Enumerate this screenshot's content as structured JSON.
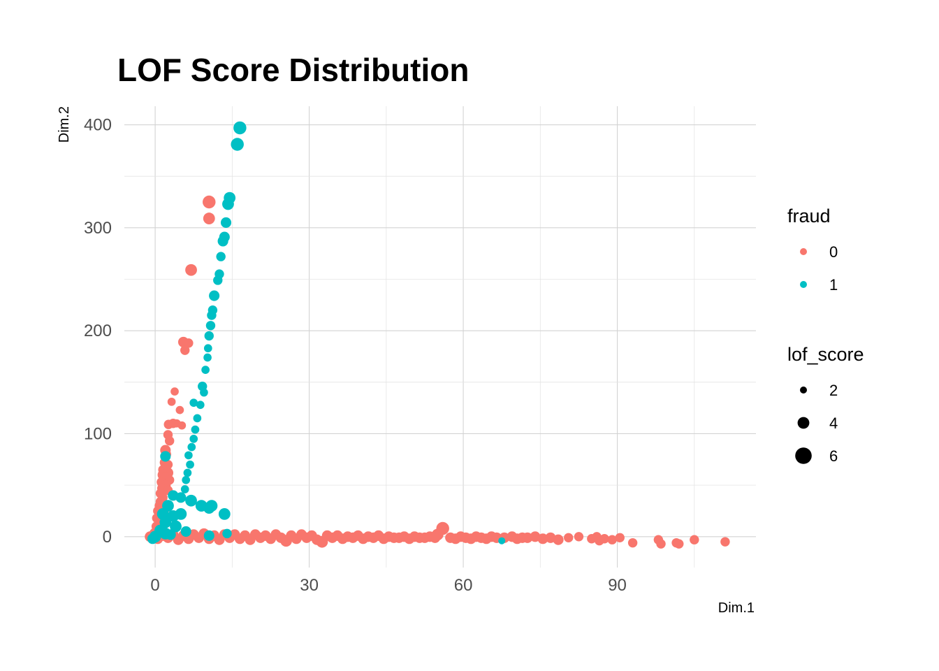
{
  "chart_data": {
    "type": "scatter",
    "title": "LOF Score Distribution",
    "xlabel": "Dim.1",
    "ylabel": "Dim.2",
    "xlim": [
      -6,
      117
    ],
    "ylim": [
      -30,
      418
    ],
    "x_ticks": [
      0,
      30,
      60,
      90
    ],
    "y_ticks": [
      0,
      100,
      200,
      300,
      400
    ],
    "x_tick_labels": [
      "0",
      "30",
      "60",
      "90"
    ],
    "y_tick_labels": [
      "0",
      "100",
      "200",
      "300",
      "400"
    ],
    "grid": true,
    "legend_position": "right",
    "color_legend": {
      "title": "fraud",
      "entries": [
        {
          "label": "0",
          "color": "#F8766D"
        },
        {
          "label": "1",
          "color": "#00BFC4"
        }
      ]
    },
    "size_legend": {
      "title": "lof_score",
      "entries": [
        {
          "label": "2",
          "value": 2
        },
        {
          "label": "4",
          "value": 4
        },
        {
          "label": "6",
          "value": 6
        }
      ]
    },
    "series": [
      {
        "name": "0",
        "color": "#F8766D",
        "points": [
          [
            10.5,
            325,
            4.5
          ],
          [
            10.5,
            309,
            4
          ],
          [
            7,
            259,
            4
          ],
          [
            5.5,
            189,
            3.5
          ],
          [
            6.5,
            188,
            3
          ],
          [
            5.8,
            181,
            3
          ],
          [
            3.8,
            141,
            2.5
          ],
          [
            3.2,
            131,
            2.5
          ],
          [
            4.8,
            123,
            2.5
          ],
          [
            3.5,
            110,
            3
          ],
          [
            4.2,
            110,
            2.5
          ],
          [
            2.6,
            109,
            3
          ],
          [
            2.5,
            99,
            3
          ],
          [
            5.2,
            108,
            2.5
          ],
          [
            2.8,
            93,
            3
          ],
          [
            2,
            84,
            3.5
          ],
          [
            2.2,
            80,
            3
          ],
          [
            1.8,
            72,
            3
          ],
          [
            2.5,
            70,
            3
          ],
          [
            1.5,
            65,
            3
          ],
          [
            2.5,
            62,
            3.5
          ],
          [
            1.5,
            60,
            3.5
          ],
          [
            2,
            57,
            3.5
          ],
          [
            2.8,
            55,
            3
          ],
          [
            1.2,
            53,
            3
          ],
          [
            2,
            50,
            3.5
          ],
          [
            1.3,
            47,
            3
          ],
          [
            2.5,
            45,
            3
          ],
          [
            1,
            42,
            3
          ],
          [
            1.5,
            38,
            3
          ],
          [
            1,
            34,
            3
          ],
          [
            0.8,
            30,
            3
          ],
          [
            2.2,
            28,
            3
          ],
          [
            0.5,
            25,
            3
          ],
          [
            1.5,
            22,
            3
          ],
          [
            0.3,
            18,
            3
          ],
          [
            0.8,
            14,
            3
          ],
          [
            0.2,
            10,
            3
          ],
          [
            0.6,
            6,
            3.5
          ],
          [
            0,
            3,
            4
          ],
          [
            -1,
            0,
            3.5
          ],
          [
            0.5,
            -2,
            3.5
          ],
          [
            1.5,
            1,
            3.5
          ],
          [
            2.5,
            -1,
            3.5
          ],
          [
            3.5,
            2,
            3.5
          ],
          [
            4.5,
            -3,
            3.5
          ],
          [
            5.5,
            1,
            3.5
          ],
          [
            6.5,
            -2,
            3.5
          ],
          [
            7.5,
            2,
            3.5
          ],
          [
            8.5,
            -1,
            3.5
          ],
          [
            9.5,
            3,
            3.5
          ],
          [
            10.5,
            -2,
            3.5
          ],
          [
            11.5,
            1,
            3.5
          ],
          [
            12.5,
            -3,
            3.5
          ],
          [
            13.5,
            2,
            3.5
          ],
          [
            14.5,
            -1,
            3.5
          ],
          [
            15.5,
            2,
            3.5
          ],
          [
            16.5,
            -2,
            3.5
          ],
          [
            17.5,
            1,
            3.5
          ],
          [
            18.5,
            -3,
            3.5
          ],
          [
            19.5,
            2,
            3.5
          ],
          [
            20.5,
            -1,
            3.5
          ],
          [
            21.5,
            1,
            3.5
          ],
          [
            22.5,
            -2,
            3.5
          ],
          [
            23.5,
            2,
            3.5
          ],
          [
            24.5,
            -1,
            3.5
          ],
          [
            25.5,
            -4,
            4
          ],
          [
            26.5,
            1,
            3.5
          ],
          [
            27.5,
            -2,
            3.5
          ],
          [
            28.5,
            2,
            3.5
          ],
          [
            29.5,
            -1,
            3.5
          ],
          [
            30.5,
            1,
            3.5
          ],
          [
            31.5,
            -3,
            3.5
          ],
          [
            32.5,
            -5,
            4
          ],
          [
            33.5,
            1,
            3.5
          ],
          [
            34.5,
            -1,
            3.5
          ],
          [
            35.5,
            1,
            3.5
          ],
          [
            36.5,
            -2,
            3.5
          ],
          [
            37.5,
            0,
            3.5
          ],
          [
            38.5,
            -1,
            3.5
          ],
          [
            39.5,
            1,
            3.5
          ],
          [
            40.5,
            -2,
            3.5
          ],
          [
            41.5,
            0,
            3.5
          ],
          [
            42.5,
            -1,
            3.5
          ],
          [
            43.5,
            1,
            3.5
          ],
          [
            44.5,
            -2,
            3.5
          ],
          [
            45.5,
            0,
            3.5
          ],
          [
            46.5,
            -1,
            3.5
          ],
          [
            47.5,
            -1,
            3.5
          ],
          [
            48.5,
            0,
            3.5
          ],
          [
            49.5,
            -2,
            3.5
          ],
          [
            50.5,
            0,
            3.5
          ],
          [
            51.5,
            -1,
            3.5
          ],
          [
            52.5,
            -1,
            3.5
          ],
          [
            53.5,
            0,
            3.5
          ],
          [
            54.5,
            -1,
            3.5
          ],
          [
            55,
            2,
            4
          ],
          [
            56,
            8,
            4.5
          ],
          [
            57.5,
            -1,
            3.5
          ],
          [
            58.5,
            -2,
            3.5
          ],
          [
            59.5,
            0,
            3.5
          ],
          [
            60.5,
            -1,
            3.5
          ],
          [
            61.5,
            -2,
            3.5
          ],
          [
            62.5,
            0,
            3.5
          ],
          [
            63.5,
            -1,
            3.5
          ],
          [
            64.5,
            -2,
            3.5
          ],
          [
            65.5,
            0,
            3.5
          ],
          [
            66.5,
            -1,
            3.5
          ],
          [
            68,
            -1,
            3.5
          ],
          [
            69.5,
            0,
            3.5
          ],
          [
            70.5,
            -2,
            3.5
          ],
          [
            71.5,
            -1,
            3.5
          ],
          [
            72.5,
            -1,
            3.5
          ],
          [
            74,
            0,
            3.5
          ],
          [
            75.5,
            -2,
            3.5
          ],
          [
            77,
            -1,
            3.5
          ],
          [
            78.5,
            -3,
            3.5
          ],
          [
            80.5,
            -1,
            3
          ],
          [
            82.5,
            0,
            3
          ],
          [
            85,
            -2,
            3
          ],
          [
            86.5,
            -4,
            3
          ],
          [
            86,
            0,
            3
          ],
          [
            87.5,
            -2,
            3
          ],
          [
            89,
            -3,
            3
          ],
          [
            90.5,
            -1,
            3
          ],
          [
            93,
            -6,
            3
          ],
          [
            98,
            -3,
            3
          ],
          [
            98.5,
            -7,
            3
          ],
          [
            101.5,
            -6,
            3
          ],
          [
            102,
            -7,
            3
          ],
          [
            105,
            -3,
            3
          ],
          [
            111,
            -5,
            3
          ]
        ]
      },
      {
        "name": "1",
        "color": "#00BFC4",
        "points": [
          [
            16.5,
            397,
            4.5
          ],
          [
            16,
            381,
            4.5
          ],
          [
            14.5,
            329,
            4
          ],
          [
            14.2,
            323,
            4
          ],
          [
            13.8,
            305,
            3.5
          ],
          [
            13.5,
            291,
            3.5
          ],
          [
            13.2,
            287,
            3.5
          ],
          [
            12.8,
            272,
            3
          ],
          [
            12.5,
            255,
            3
          ],
          [
            12.2,
            249,
            3
          ],
          [
            11.5,
            234,
            3.5
          ],
          [
            11.2,
            220,
            3
          ],
          [
            11,
            215,
            3
          ],
          [
            10.8,
            205,
            3
          ],
          [
            10.5,
            195,
            3
          ],
          [
            10.3,
            183,
            2.5
          ],
          [
            10.2,
            174,
            2.5
          ],
          [
            9.8,
            162,
            2.5
          ],
          [
            9.2,
            146,
            3
          ],
          [
            9.5,
            140,
            2.5
          ],
          [
            8.8,
            128,
            2.5
          ],
          [
            8.2,
            115,
            2.5
          ],
          [
            7.8,
            104,
            2.5
          ],
          [
            7.5,
            95,
            2.5
          ],
          [
            7.1,
            87,
            2.5
          ],
          [
            6.5,
            79,
            2.5
          ],
          [
            6.8,
            70,
            2.5
          ],
          [
            6.3,
            62,
            2.5
          ],
          [
            6,
            55,
            2.5
          ],
          [
            5.8,
            46,
            2.5
          ],
          [
            7.5,
            130,
            2.5
          ],
          [
            2,
            78,
            3.5
          ],
          [
            3.5,
            40,
            3.5
          ],
          [
            5,
            38,
            3.5
          ],
          [
            7,
            35,
            4
          ],
          [
            9,
            30,
            4
          ],
          [
            10.5,
            28,
            4
          ],
          [
            11,
            30,
            4
          ],
          [
            13.5,
            22,
            4
          ],
          [
            2.5,
            30,
            4
          ],
          [
            1.5,
            22,
            4
          ],
          [
            3.5,
            20,
            4
          ],
          [
            5,
            22,
            4
          ],
          [
            2,
            14,
            4
          ],
          [
            4,
            10,
            4
          ],
          [
            1,
            6,
            4
          ],
          [
            2,
            3,
            4
          ],
          [
            0,
            0,
            4
          ],
          [
            -0.5,
            -2,
            3.5
          ],
          [
            3,
            2,
            3.5
          ],
          [
            6,
            5,
            3.5
          ],
          [
            10.5,
            1,
            3.5
          ],
          [
            14,
            3,
            3
          ],
          [
            67.5,
            -4,
            2
          ]
        ]
      }
    ]
  }
}
